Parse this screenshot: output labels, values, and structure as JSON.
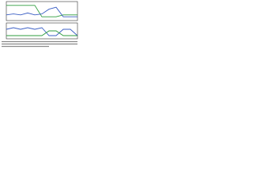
{
  "chart_data": [
    {
      "type": "line",
      "x": [
        0,
        1,
        2,
        3,
        4,
        5,
        6,
        7,
        8,
        9,
        10
      ],
      "xlim": [
        0,
        10
      ],
      "ylim": [
        0,
        1
      ],
      "series": [
        {
          "color": "#2e9e3e",
          "values": [
            0.8,
            0.8,
            0.8,
            0.8,
            0.8,
            0.2,
            0.2,
            0.2,
            0.3,
            0.3,
            0.3
          ]
        },
        {
          "color": "#3b5fc4",
          "values": [
            0.3,
            0.35,
            0.3,
            0.4,
            0.3,
            0.35,
            0.6,
            0.7,
            0.2,
            0.2,
            0.2
          ]
        }
      ]
    },
    {
      "type": "line",
      "x": [
        0,
        1,
        2,
        3,
        4,
        5,
        6,
        7,
        8,
        9,
        10
      ],
      "xlim": [
        0,
        10
      ],
      "ylim": [
        0,
        1
      ],
      "series": [
        {
          "color": "#3b5fc4",
          "values": [
            0.6,
            0.7,
            0.6,
            0.7,
            0.6,
            0.7,
            0.2,
            0.2,
            0.6,
            0.6,
            0.2
          ]
        },
        {
          "color": "#2e9e3e",
          "values": [
            0.2,
            0.2,
            0.2,
            0.2,
            0.2,
            0.2,
            0.5,
            0.5,
            0.2,
            0.2,
            0.2
          ]
        }
      ]
    }
  ]
}
